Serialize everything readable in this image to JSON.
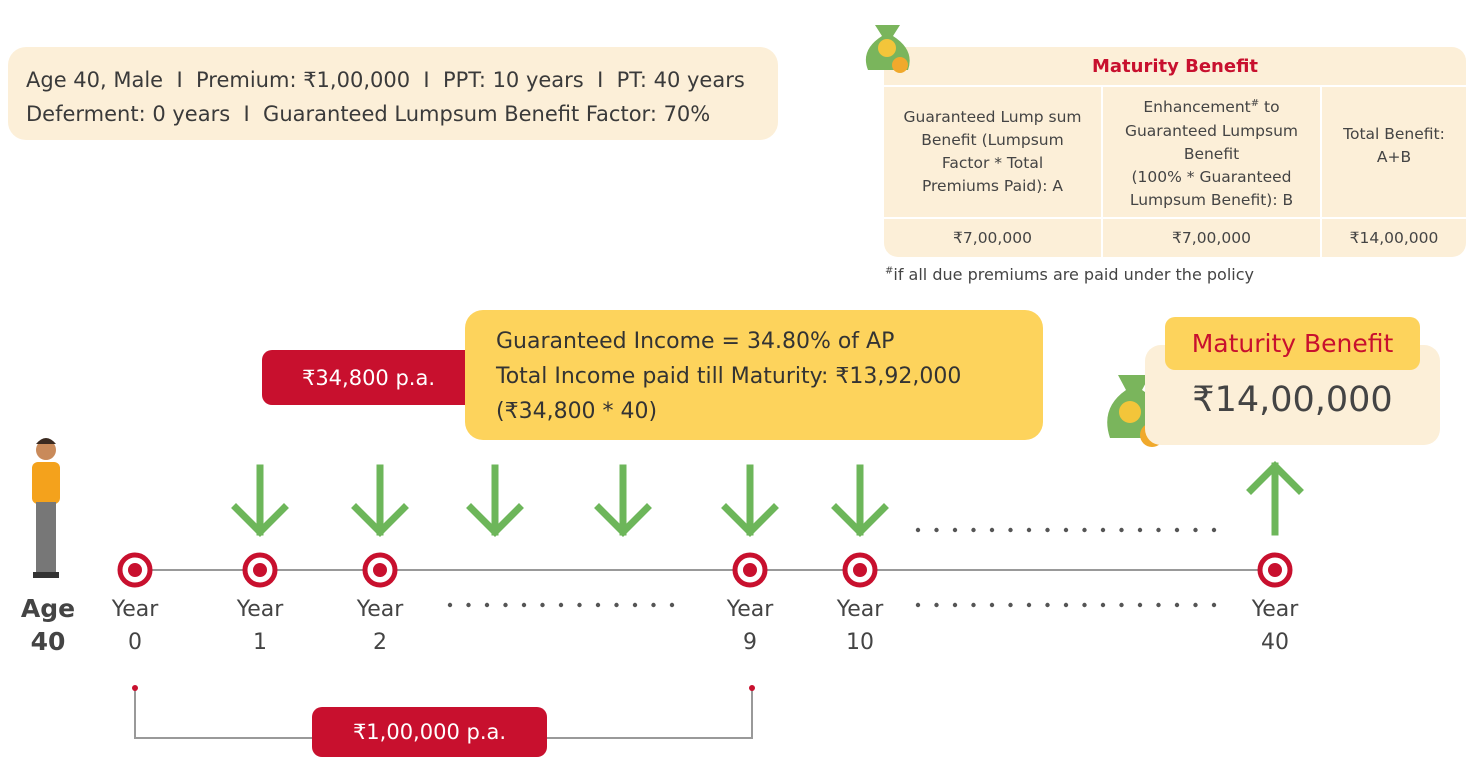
{
  "info": {
    "lines": [
      "Age 40, Male  I  Premium: ₹1,00,000  I  PPT: 10 years  I  PT: 40 years",
      "Deferment: 0 years  I  Guaranteed Lumpsum Benefit Factor: 70%"
    ]
  },
  "table": {
    "title": "Maturity Benefit",
    "headers": [
      {
        "lines": [
          "Guaranteed Lump sum",
          "Benefit (Lumpsum",
          "Factor * Total",
          "Premiums Paid): A"
        ]
      },
      {
        "first": "Enhancement",
        "sup": "#",
        "rest": " to",
        "lines": [
          "Guaranteed Lumpsum",
          "Benefit",
          "(100% * Guaranteed",
          "Lumpsum Benefit): B"
        ]
      },
      {
        "lines": [
          "Total Benefit:",
          "A+B"
        ]
      }
    ],
    "row": [
      "₹7,00,000",
      "₹7,00,000",
      "₹14,00,000"
    ],
    "footnote": {
      "sup": "#",
      "text": "if all due premiums are paid under the policy"
    }
  },
  "income": {
    "badge": "₹34,800 p.a.",
    "lines": [
      "Guaranteed Income = 34.80% of AP",
      "Total Income paid till Maturity: ₹13,92,000",
      "(₹34,800 * 40)"
    ]
  },
  "maturity": {
    "title": "Maturity Benefit",
    "amount": "₹14,00,000"
  },
  "timeline": {
    "start": [
      "Age",
      "40"
    ],
    "points": [
      {
        "label": "Year",
        "year": 0
      },
      {
        "label": "Year",
        "year": 1
      },
      {
        "label": "Year",
        "year": 2
      },
      {
        "label": "Year",
        "year": 9
      },
      {
        "label": "Year",
        "year": 10
      },
      {
        "label": "Year",
        "year": 40
      }
    ],
    "premium": "₹1,00,000 p.a."
  }
}
